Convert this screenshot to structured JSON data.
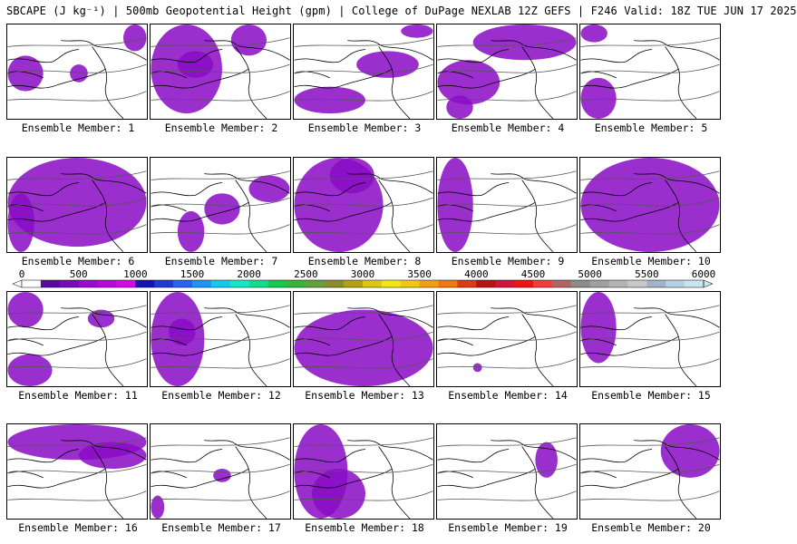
{
  "title": "SBCAPE (J kg⁻¹) | 500mb Geopotential Height (gpm) | College of DuPage NEXLAB 12Z GEFS | F246 Valid: 18Z TUE JUN 17 2025",
  "panels": [
    {
      "label": "Ensemble Member: 1"
    },
    {
      "label": "Ensemble Member: 2"
    },
    {
      "label": "Ensemble Member: 3"
    },
    {
      "label": "Ensemble Member: 4"
    },
    {
      "label": "Ensemble Member: 5"
    },
    {
      "label": "Ensemble Member: 6"
    },
    {
      "label": "Ensemble Member: 7"
    },
    {
      "label": "Ensemble Member: 8"
    },
    {
      "label": "Ensemble Member: 9"
    },
    {
      "label": "Ensemble Member: 10"
    },
    {
      "label": "Ensemble Member: 11"
    },
    {
      "label": "Ensemble Member: 12"
    },
    {
      "label": "Ensemble Member: 13"
    },
    {
      "label": "Ensemble Member: 14"
    },
    {
      "label": "Ensemble Member: 15"
    },
    {
      "label": "Ensemble Member: 16"
    },
    {
      "label": "Ensemble Member: 17"
    },
    {
      "label": "Ensemble Member: 18"
    },
    {
      "label": "Ensemble Member: 19"
    },
    {
      "label": "Ensemble Member: 20"
    }
  ],
  "colorbar": {
    "labels": [
      "0",
      "500",
      "1000",
      "1500",
      "2000",
      "2500",
      "3000",
      "3500",
      "4000",
      "4500",
      "5000",
      "5500",
      "6000"
    ],
    "colors": [
      "#ffffff",
      "#5a0a9a",
      "#7a0ab4",
      "#9a0ac8",
      "#b40adc",
      "#d20ae6",
      "#1414b4",
      "#1e3cd2",
      "#2864f0",
      "#1e96f0",
      "#14c8f0",
      "#14e6c8",
      "#14dc8c",
      "#14c850",
      "#3cb43c",
      "#64a03c",
      "#8c8c28",
      "#b4a014",
      "#dcc814",
      "#f0e614",
      "#f0c814",
      "#f0a014",
      "#f07814",
      "#dc3c14",
      "#b41414",
      "#d2143c",
      "#f01414",
      "#f03c3c",
      "#b46464",
      "#8c8c8c",
      "#a0a0a0",
      "#b4b4b4",
      "#c8c8c8",
      "#a0b4c8",
      "#b4d2e6",
      "#c8e6f0"
    ]
  }
}
